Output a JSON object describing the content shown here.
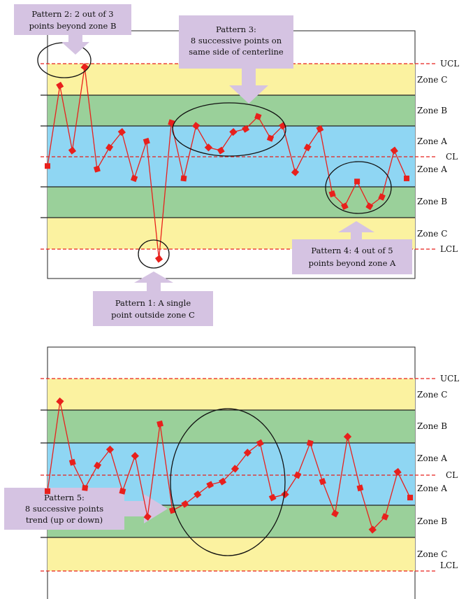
{
  "colors": {
    "zone_c": "#fbf2a0",
    "zone_b": "#9ad09a",
    "zone_a": "#8fd6f3",
    "series": "#e8201c",
    "limit_line": "#e8201c",
    "callout": "#d5c3e2"
  },
  "zone_labels": [
    "Zone C",
    "Zone B",
    "Zone A",
    "Zone A",
    "Zone B",
    "Zone C"
  ],
  "limit_labels": {
    "ucl": "UCL",
    "cl": "CL",
    "lcl": "LCL"
  },
  "chart_data": [
    {
      "type": "line",
      "zones": [
        "UCL",
        "C",
        "B",
        "A",
        "CL",
        "A",
        "B",
        "C",
        "LCL"
      ],
      "sigma_range": [
        -3.7,
        3.7
      ],
      "points": [
        -0.3,
        2.3,
        0.2,
        2.9,
        -0.4,
        0.3,
        0.8,
        -0.7,
        0.5,
        -3.3,
        1.1,
        -0.7,
        1.0,
        0.3,
        0.2,
        0.8,
        0.9,
        1.3,
        0.6,
        1.0,
        -0.5,
        0.3,
        0.9,
        -1.2,
        -1.6,
        -0.8,
        -1.6,
        -1.3,
        0.2,
        -0.7
      ],
      "annotations": [
        {
          "lines": [
            "Pattern 2: 2 out of 3",
            "points beyond zone B"
          ]
        },
        {
          "lines": [
            "Pattern 3:",
            "8 successive points on",
            "same side of centerline"
          ]
        },
        {
          "lines": [
            "Pattern 4: 4 out of 5",
            "points beyond zone A"
          ]
        },
        {
          "lines": [
            "Pattern 1: A single",
            "point outside zone C"
          ]
        }
      ]
    },
    {
      "type": "line",
      "zones": [
        "UCL",
        "C",
        "B",
        "A",
        "CL",
        "A",
        "B",
        "C",
        "LCL"
      ],
      "sigma_range": [
        -3.7,
        3.7
      ],
      "points": [
        -0.5,
        2.3,
        0.4,
        -0.4,
        0.3,
        0.8,
        -0.5,
        0.6,
        -1.3,
        1.6,
        -1.1,
        -0.9,
        -0.6,
        -0.3,
        -0.2,
        0.2,
        0.7,
        1.0,
        -0.7,
        -0.6,
        0.0,
        1.0,
        -0.2,
        -1.2,
        1.2,
        -0.4,
        -1.7,
        -1.3,
        0.1,
        -0.7
      ],
      "annotations": [
        {
          "lines": [
            "Pattern 5:",
            "8 successive points",
            "trend (up or down)"
          ]
        }
      ]
    }
  ]
}
